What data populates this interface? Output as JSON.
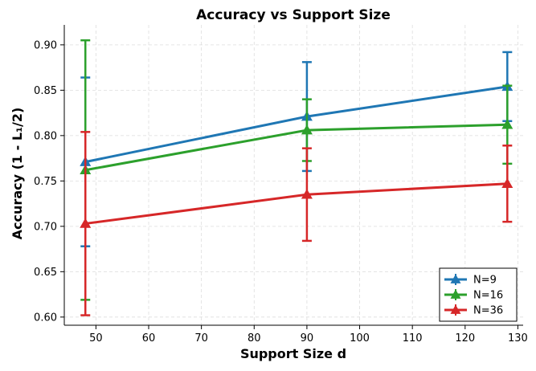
{
  "chart_data": {
    "type": "line",
    "title": "Accuracy vs Support Size",
    "xlabel": "Support Size d",
    "ylabel": "Accuracy (1 - L₁/2)",
    "xlim": [
      44,
      131
    ],
    "ylim": [
      0.591,
      0.922
    ],
    "xticks": [
      50,
      60,
      70,
      80,
      90,
      100,
      110,
      120,
      130
    ],
    "yticks": [
      0.6,
      0.65,
      0.7,
      0.75,
      0.8,
      0.85,
      0.9
    ],
    "grid": true,
    "legend_position": "bottom-right",
    "x": [
      48,
      90,
      128
    ],
    "series": [
      {
        "name": "N=9",
        "color": "#1f77b4",
        "values": [
          0.771,
          0.821,
          0.854
        ],
        "errors": [
          0.093,
          0.06,
          0.038
        ]
      },
      {
        "name": "N=16",
        "color": "#2ca02c",
        "values": [
          0.762,
          0.806,
          0.812
        ],
        "errors": [
          0.143,
          0.034,
          0.043
        ]
      },
      {
        "name": "N=36",
        "color": "#d62728",
        "values": [
          0.703,
          0.735,
          0.747
        ],
        "errors": [
          0.101,
          0.051,
          0.042
        ]
      }
    ]
  }
}
